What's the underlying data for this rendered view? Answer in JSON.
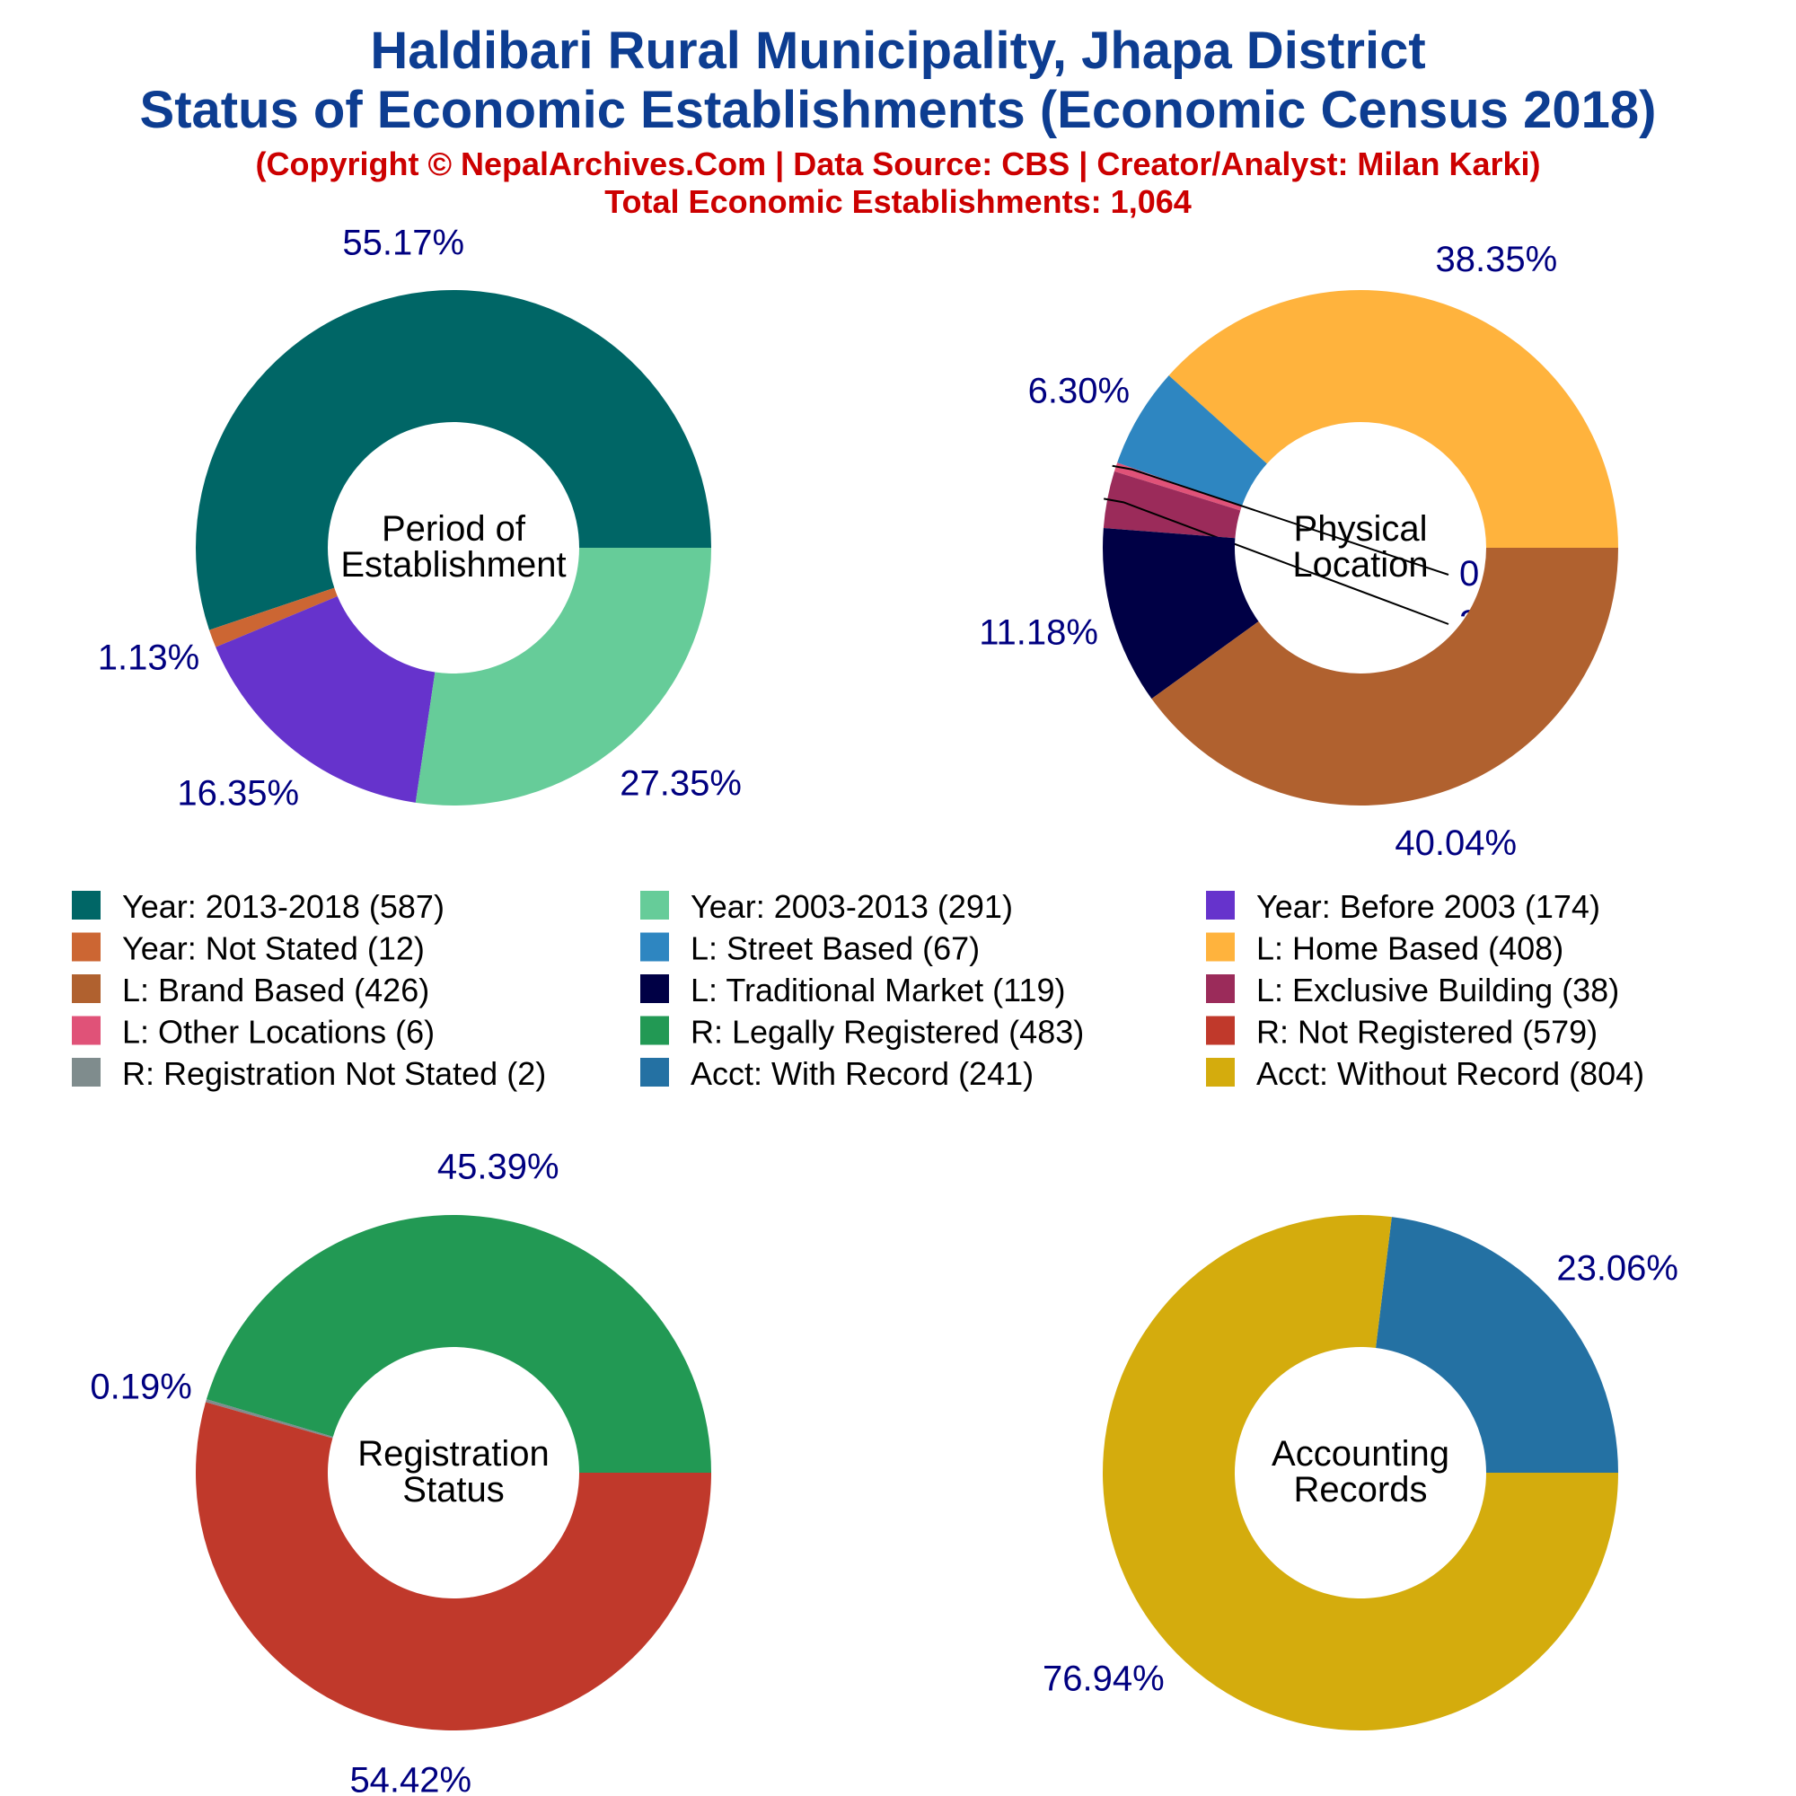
{
  "title_line1": "Haldibari Rural Municipality, Jhapa District",
  "title_line2": "Status of Economic Establishments (Economic Census 2018)",
  "subtitle_line1": "(Copyright © NepalArchives.Com | Data Source: CBS | Creator/Analyst: Milan Karki)",
  "subtitle_line2": "Total Economic Establishments: 1,064",
  "chart_data": [
    {
      "type": "pie",
      "center_label": [
        "Period of",
        "Establishment"
      ],
      "slices": [
        {
          "label": "Year: 2013-2018",
          "value": 587,
          "pct": "55.17%",
          "color": "#006666"
        },
        {
          "label": "Year: Not Stated",
          "value": 12,
          "pct": "1.13%",
          "color": "#cc6633"
        },
        {
          "label": "Year: Before 2003",
          "value": 174,
          "pct": "16.35%",
          "color": "#6633cc"
        },
        {
          "label": "Year: 2003-2013",
          "value": 291,
          "pct": "27.35%",
          "color": "#66cc99"
        }
      ]
    },
    {
      "type": "pie",
      "center_label": [
        "Physical",
        "Location"
      ],
      "slices": [
        {
          "label": "L: Home Based",
          "value": 408,
          "pct": "38.35%",
          "color": "#ffb33d"
        },
        {
          "label": "L: Street Based",
          "value": 67,
          "pct": "6.30%",
          "color": "#2e86c1"
        },
        {
          "label": "L: Other Locations",
          "value": 6,
          "pct": "0.56%",
          "color": "#e05278"
        },
        {
          "label": "L: Exclusive Building",
          "value": 38,
          "pct": "3.57%",
          "color": "#9b2b5a"
        },
        {
          "label": "L: Traditional Market",
          "value": 119,
          "pct": "11.18%",
          "color": "#000045"
        },
        {
          "label": "L: Brand Based",
          "value": 426,
          "pct": "40.04%",
          "color": "#b0612f"
        }
      ]
    },
    {
      "type": "pie",
      "center_label": [
        "Registration",
        "Status"
      ],
      "slices": [
        {
          "label": "R: Legally Registered",
          "value": 483,
          "pct": "45.39%",
          "color": "#229954"
        },
        {
          "label": "R: Registration Not Stated",
          "value": 2,
          "pct": "0.19%",
          "color": "#7f8c8d"
        },
        {
          "label": "R: Not Registered",
          "value": 579,
          "pct": "54.42%",
          "color": "#c0392b"
        }
      ]
    },
    {
      "type": "pie",
      "center_label": [
        "Accounting",
        "Records"
      ],
      "slices": [
        {
          "label": "Acct: With Record",
          "value": 241,
          "pct": "23.06%",
          "color": "#2471a3"
        },
        {
          "label": "Acct: Without Record",
          "value": 804,
          "pct": "76.94%",
          "color": "#d4ac0d"
        }
      ]
    }
  ],
  "legend": [
    {
      "text": "Year: 2013-2018 (587)",
      "color": "#006666"
    },
    {
      "text": "Year: 2003-2013 (291)",
      "color": "#66cc99"
    },
    {
      "text": "Year: Before 2003 (174)",
      "color": "#6633cc"
    },
    {
      "text": "Year: Not Stated (12)",
      "color": "#cc6633"
    },
    {
      "text": "L: Street Based (67)",
      "color": "#2e86c1"
    },
    {
      "text": "L: Home Based (408)",
      "color": "#ffb33d"
    },
    {
      "text": "L: Brand Based (426)",
      "color": "#b0612f"
    },
    {
      "text": "L: Traditional Market (119)",
      "color": "#000045"
    },
    {
      "text": "L: Exclusive Building (38)",
      "color": "#9b2b5a"
    },
    {
      "text": "L: Other Locations (6)",
      "color": "#e05278"
    },
    {
      "text": "R: Legally Registered (483)",
      "color": "#229954"
    },
    {
      "text": "R: Not Registered (579)",
      "color": "#c0392b"
    },
    {
      "text": "R: Registration Not Stated (2)",
      "color": "#7f8c8d"
    },
    {
      "text": "Acct: With Record (241)",
      "color": "#2471a3"
    },
    {
      "text": "Acct: Without Record (804)",
      "color": "#d4ac0d"
    }
  ]
}
